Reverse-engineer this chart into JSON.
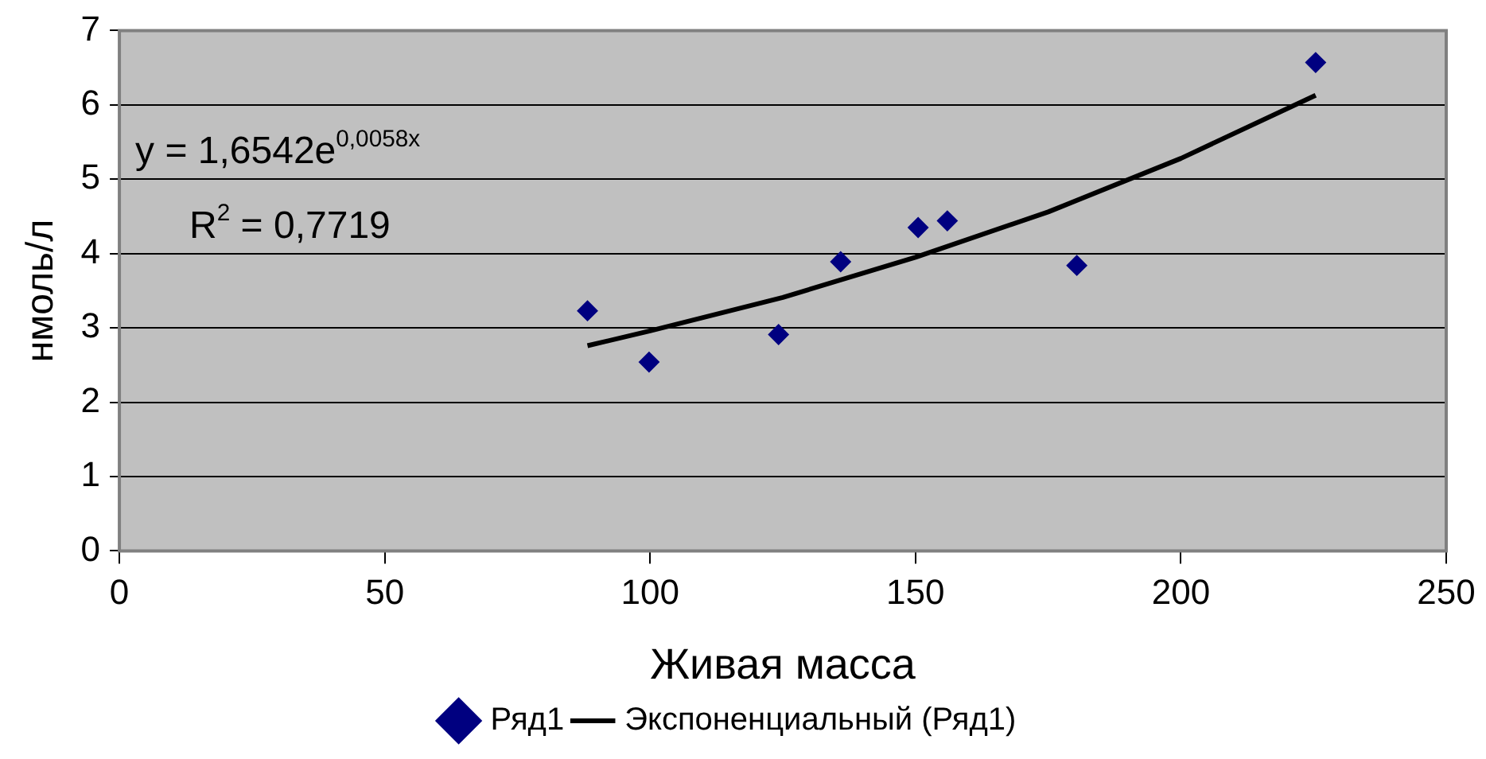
{
  "chart_data": {
    "type": "scatter",
    "xlabel": "Живая масса",
    "ylabel": "нмоль/л",
    "xlim": [
      0,
      250
    ],
    "xticks": [
      0,
      50,
      100,
      150,
      200,
      250
    ],
    "ylim": [
      0,
      7
    ],
    "yticks": [
      0,
      1,
      2,
      3,
      4,
      5,
      6,
      7
    ],
    "grid": "y",
    "legend": "bottom",
    "annotations": [
      "y = 1,6542e$^{0,0058x}$",
      "R$^{2}$ = 0,7719"
    ],
    "series": [
      {
        "name": "Ряд1",
        "marker": "diamond",
        "color": "#000080",
        "x": [
          88.2,
          99.8,
          124.2,
          135.9,
          150.5,
          156,
          180.4,
          225.4
        ],
        "values": [
          3.23,
          2.54,
          2.91,
          3.89,
          4.35,
          4.44,
          3.84,
          6.57
        ]
      },
      {
        "name": "Экспоненциальный (Ряд1)",
        "type": "line",
        "color": "#000000",
        "line_style": "solid",
        "x": [
          88.2,
          100,
          125,
          150,
          175,
          200,
          225.4
        ],
        "values": [
          2.76,
          2.96,
          3.41,
          3.95,
          4.56,
          5.28,
          6.13
        ]
      }
    ]
  }
}
